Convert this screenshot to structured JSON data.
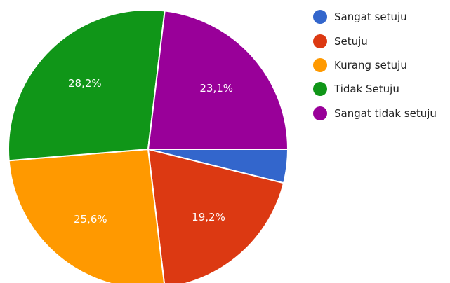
{
  "chart_data": {
    "type": "pie",
    "categories": [
      "Sangat setuju",
      "Setuju",
      "Kurang setuju",
      "Tidak Setuju",
      "Sangat tidak setuju"
    ],
    "values": [
      3.9,
      19.2,
      25.6,
      28.2,
      23.1
    ],
    "slice_labels": [
      "",
      "19,2%",
      "25,6%",
      "28,2%",
      "23,1%"
    ],
    "colors": [
      "#3366cc",
      "#dc3912",
      "#ff9900",
      "#109618",
      "#990099"
    ],
    "start": "3 o'clock",
    "direction": "clockwise",
    "legend_position": "right"
  }
}
